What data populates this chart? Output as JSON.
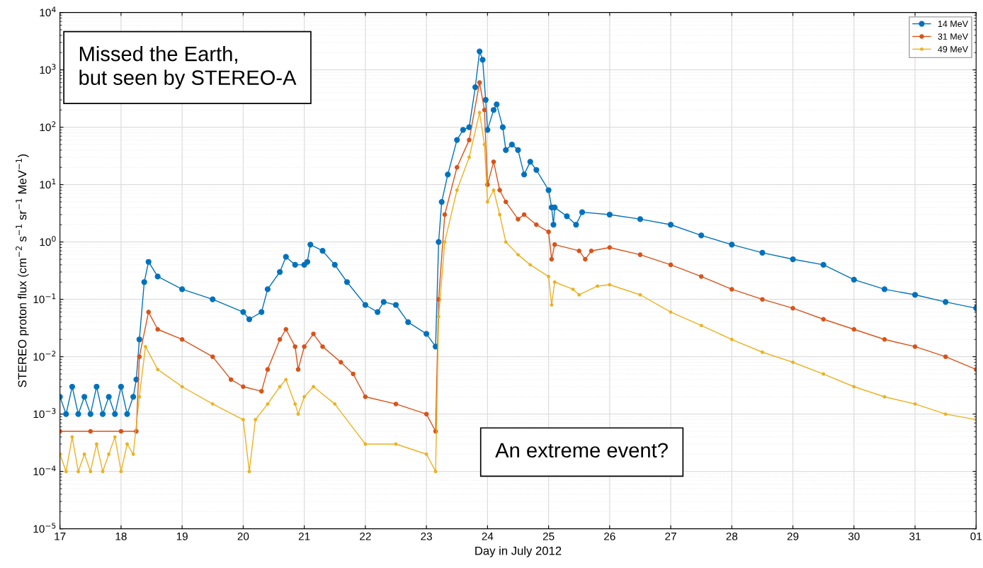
{
  "chart_data": {
    "type": "line",
    "xlabel": "Day in July 2012",
    "ylabel": "STEREO proton flux (cm$^{−2}$ s$^{−1}$ sr$^{−1}$ MeV$^{−1}$)",
    "log": "y",
    "grid": true,
    "legend": "top right",
    "marker": "circle",
    "line_style": "solid",
    "xlim": [
      "2012-07-17",
      "2012-08-01"
    ],
    "xticks": [
      {
        "value": "2012-07-17",
        "label": "17"
      },
      {
        "value": "2012-07-18",
        "label": "18"
      },
      {
        "value": "2012-07-19",
        "label": "19"
      },
      {
        "value": "2012-07-20",
        "label": "20"
      },
      {
        "value": "2012-07-21",
        "label": "21"
      },
      {
        "value": "2012-07-22",
        "label": "22"
      },
      {
        "value": "2012-07-23",
        "label": "23"
      },
      {
        "value": "2012-07-24",
        "label": "24"
      },
      {
        "value": "2012-07-25",
        "label": "25"
      },
      {
        "value": "2012-07-26",
        "label": "26"
      },
      {
        "value": "2012-07-27",
        "label": "27"
      },
      {
        "value": "2012-07-28",
        "label": "28"
      },
      {
        "value": "2012-07-29",
        "label": "29"
      },
      {
        "value": "2012-07-30",
        "label": "30"
      },
      {
        "value": "2012-07-31",
        "label": "31"
      },
      {
        "value": "2012-08-01",
        "label": "01"
      }
    ],
    "ylim": [
      1e-05,
      10000
    ],
    "yticks": [
      {
        "value": 1e-05,
        "label": "10$^{−5}$"
      },
      {
        "value": 0.0001,
        "label": "10$^{−4}$"
      },
      {
        "value": 0.001,
        "label": "10$^{−3}$"
      },
      {
        "value": 0.01,
        "label": "10$^{−2}$"
      },
      {
        "value": 0.1,
        "label": "10$^{−1}$"
      },
      {
        "value": 1,
        "label": "10$^{0}$"
      },
      {
        "value": 10,
        "label": "10$^{1}$"
      },
      {
        "value": 100,
        "label": "10$^{2}$"
      },
      {
        "value": 1000,
        "label": "10$^{3}$"
      },
      {
        "value": 10000,
        "label": "10$^{4}$"
      }
    ],
    "annotations": [
      "Missed the Earth,\nbut seen by STEREO-A",
      "An extreme event?"
    ],
    "series": [
      {
        "name": "14 MeV",
        "color": "#0072bd",
        "x": [
          "2012-07-17T00:00",
          "2012-07-17T02:24",
          "2012-07-17T04:48",
          "2012-07-17T07:12",
          "2012-07-17T09:36",
          "2012-07-17T12:00",
          "2012-07-17T14:24",
          "2012-07-17T16:48",
          "2012-07-17T19:12",
          "2012-07-17T21:36",
          "2012-07-18T00:00",
          "2012-07-18T02:24",
          "2012-07-18T04:48",
          "2012-07-18T06:00",
          "2012-07-18T07:12",
          "2012-07-18T09:07",
          "2012-07-18T10:48",
          "2012-07-18T14:24",
          "2012-07-19T00:00",
          "2012-07-19T12:00",
          "2012-07-20T00:00",
          "2012-07-20T02:24",
          "2012-07-20T07:12",
          "2012-07-20T09:36",
          "2012-07-20T14:24",
          "2012-07-20T16:48",
          "2012-07-20T20:24",
          "2012-07-21T00:00",
          "2012-07-21T01:12",
          "2012-07-21T02:24",
          "2012-07-21T07:12",
          "2012-07-21T12:00",
          "2012-07-21T16:48",
          "2012-07-22T00:00",
          "2012-07-22T04:48",
          "2012-07-22T07:12",
          "2012-07-22T12:00",
          "2012-07-22T16:48",
          "2012-07-23T00:00",
          "2012-07-23T03:36",
          "2012-07-23T04:48",
          "2012-07-23T06:00",
          "2012-07-23T08:24",
          "2012-07-23T12:00",
          "2012-07-23T14:24",
          "2012-07-23T16:48",
          "2012-07-23T19:12",
          "2012-07-23T20:53",
          "2012-07-23T22:05",
          "2012-07-23T23:17",
          "2012-07-24T00:00",
          "2012-07-24T02:24",
          "2012-07-24T03:36",
          "2012-07-24T06:00",
          "2012-07-24T07:12",
          "2012-07-24T09:36",
          "2012-07-24T12:00",
          "2012-07-24T14:24",
          "2012-07-24T16:48",
          "2012-07-24T19:12",
          "2012-07-25T00:00",
          "2012-07-25T01:12",
          "2012-07-25T01:55",
          "2012-07-25T02:24",
          "2012-07-25T07:12",
          "2012-07-25T10:48",
          "2012-07-25T13:12",
          "2012-07-26T00:00",
          "2012-07-26T12:00",
          "2012-07-27T00:00",
          "2012-07-27T12:00",
          "2012-07-28T00:00",
          "2012-07-28T12:00",
          "2012-07-29T00:00",
          "2012-07-29T12:00",
          "2012-07-30T00:00",
          "2012-07-30T12:00",
          "2012-07-31T00:00",
          "2012-07-31T12:00",
          "2012-08-01T00:00"
        ],
        "values": [
          0.002,
          0.001,
          0.003,
          0.001,
          0.002,
          0.001,
          0.003,
          0.001,
          0.002,
          0.001,
          0.003,
          0.001,
          0.002,
          0.004,
          0.02,
          0.2,
          0.45,
          0.25,
          0.15,
          0.1,
          0.06,
          0.045,
          0.06,
          0.15,
          0.3,
          0.55,
          0.4,
          0.4,
          0.45,
          0.9,
          0.7,
          0.4,
          0.2,
          0.08,
          0.06,
          0.09,
          0.08,
          0.04,
          0.025,
          0.015,
          1,
          5,
          15,
          60,
          90,
          100,
          500,
          2100,
          1500,
          300,
          90,
          200,
          250,
          100,
          40,
          50,
          40,
          15,
          25,
          18,
          8,
          4,
          2,
          4,
          2.8,
          2,
          3.3,
          3,
          2.5,
          2,
          1.3,
          0.9,
          0.65,
          0.5,
          0.4,
          0.22,
          0.15,
          0.12,
          0.09,
          0.07
        ]
      },
      {
        "name": "31 MeV",
        "color": "#d95319",
        "x": [
          "2012-07-17T00:00",
          "2012-07-17T12:00",
          "2012-07-18T00:00",
          "2012-07-18T06:00",
          "2012-07-18T07:12",
          "2012-07-18T10:48",
          "2012-07-18T14:24",
          "2012-07-19T00:00",
          "2012-07-19T12:00",
          "2012-07-19T19:12",
          "2012-07-20T00:00",
          "2012-07-20T07:12",
          "2012-07-20T09:36",
          "2012-07-20T14:24",
          "2012-07-20T16:48",
          "2012-07-20T20:24",
          "2012-07-20T21:36",
          "2012-07-21T00:00",
          "2012-07-21T03:36",
          "2012-07-21T07:12",
          "2012-07-21T14:24",
          "2012-07-21T19:12",
          "2012-07-22T00:00",
          "2012-07-22T12:00",
          "2012-07-23T00:00",
          "2012-07-23T03:36",
          "2012-07-23T04:48",
          "2012-07-23T07:12",
          "2012-07-23T12:00",
          "2012-07-23T16:48",
          "2012-07-23T20:53",
          "2012-07-23T22:48",
          "2012-07-24T00:00",
          "2012-07-24T02:24",
          "2012-07-24T04:48",
          "2012-07-24T07:12",
          "2012-07-24T12:00",
          "2012-07-24T14:24",
          "2012-07-24T19:12",
          "2012-07-25T00:00",
          "2012-07-25T01:12",
          "2012-07-25T02:24",
          "2012-07-25T12:00",
          "2012-07-25T14:24",
          "2012-07-25T16:48",
          "2012-07-26T00:00",
          "2012-07-26T12:00",
          "2012-07-27T00:00",
          "2012-07-27T12:00",
          "2012-07-28T00:00",
          "2012-07-28T12:00",
          "2012-07-29T00:00",
          "2012-07-29T12:00",
          "2012-07-30T00:00",
          "2012-07-30T12:00",
          "2012-07-31T00:00",
          "2012-07-31T12:00",
          "2012-08-01T00:00"
        ],
        "values": [
          0.0005,
          0.0005,
          0.0005,
          0.0005,
          0.01,
          0.06,
          0.03,
          0.02,
          0.01,
          0.004,
          0.003,
          0.0025,
          0.006,
          0.02,
          0.03,
          0.015,
          0.006,
          0.015,
          0.025,
          0.015,
          0.008,
          0.005,
          0.002,
          0.0015,
          0.001,
          0.0005,
          0.1,
          3,
          20,
          60,
          600,
          200,
          10,
          25,
          8,
          5,
          2.5,
          3,
          2,
          1.5,
          0.5,
          0.9,
          0.7,
          0.5,
          0.7,
          0.8,
          0.6,
          0.4,
          0.25,
          0.15,
          0.1,
          0.07,
          0.045,
          0.03,
          0.02,
          0.015,
          0.01,
          0.006
        ]
      },
      {
        "name": "49 MeV",
        "color": "#edb120",
        "x": [
          "2012-07-17T00:00",
          "2012-07-17T02:24",
          "2012-07-17T04:48",
          "2012-07-17T07:12",
          "2012-07-17T09:36",
          "2012-07-17T12:00",
          "2012-07-17T14:24",
          "2012-07-17T16:48",
          "2012-07-17T19:12",
          "2012-07-17T21:36",
          "2012-07-18T00:00",
          "2012-07-18T02:24",
          "2012-07-18T04:48",
          "2012-07-18T07:12",
          "2012-07-18T09:36",
          "2012-07-18T14:24",
          "2012-07-19T00:00",
          "2012-07-19T12:00",
          "2012-07-20T00:00",
          "2012-07-20T02:24",
          "2012-07-20T04:48",
          "2012-07-20T09:36",
          "2012-07-20T14:24",
          "2012-07-20T16:48",
          "2012-07-20T20:24",
          "2012-07-20T21:36",
          "2012-07-21T00:00",
          "2012-07-21T03:36",
          "2012-07-21T12:00",
          "2012-07-22T00:00",
          "2012-07-22T12:00",
          "2012-07-23T00:00",
          "2012-07-23T03:36",
          "2012-07-23T04:48",
          "2012-07-23T07:12",
          "2012-07-23T12:00",
          "2012-07-23T16:48",
          "2012-07-23T20:53",
          "2012-07-23T22:48",
          "2012-07-24T00:00",
          "2012-07-24T02:24",
          "2012-07-24T04:48",
          "2012-07-24T07:12",
          "2012-07-24T12:00",
          "2012-07-24T16:48",
          "2012-07-25T00:00",
          "2012-07-25T01:12",
          "2012-07-25T02:24",
          "2012-07-25T09:36",
          "2012-07-25T12:00",
          "2012-07-25T19:12",
          "2012-07-26T00:00",
          "2012-07-26T12:00",
          "2012-07-27T00:00",
          "2012-07-27T12:00",
          "2012-07-28T00:00",
          "2012-07-28T12:00",
          "2012-07-29T00:00",
          "2012-07-29T12:00",
          "2012-07-30T00:00",
          "2012-07-30T12:00",
          "2012-07-31T00:00",
          "2012-07-31T12:00",
          "2012-08-01T00:00"
        ],
        "values": [
          0.0002,
          0.0001,
          0.0004,
          0.0001,
          0.0002,
          0.0001,
          0.0003,
          0.0001,
          0.0002,
          0.0004,
          0.0001,
          0.0003,
          0.0002,
          0.002,
          0.015,
          0.006,
          0.003,
          0.0015,
          0.0008,
          0.0001,
          0.0008,
          0.0015,
          0.003,
          0.004,
          0.0015,
          0.001,
          0.002,
          0.003,
          0.0015,
          0.0003,
          0.0003,
          0.0002,
          0.0001,
          0.05,
          1,
          8,
          30,
          180,
          50,
          5,
          8,
          3,
          1,
          0.6,
          0.4,
          0.25,
          0.08,
          0.2,
          0.15,
          0.12,
          0.17,
          0.18,
          0.12,
          0.06,
          0.035,
          0.02,
          0.012,
          0.008,
          0.005,
          0.003,
          0.002,
          0.0015,
          0.001,
          0.0008
        ]
      }
    ]
  }
}
